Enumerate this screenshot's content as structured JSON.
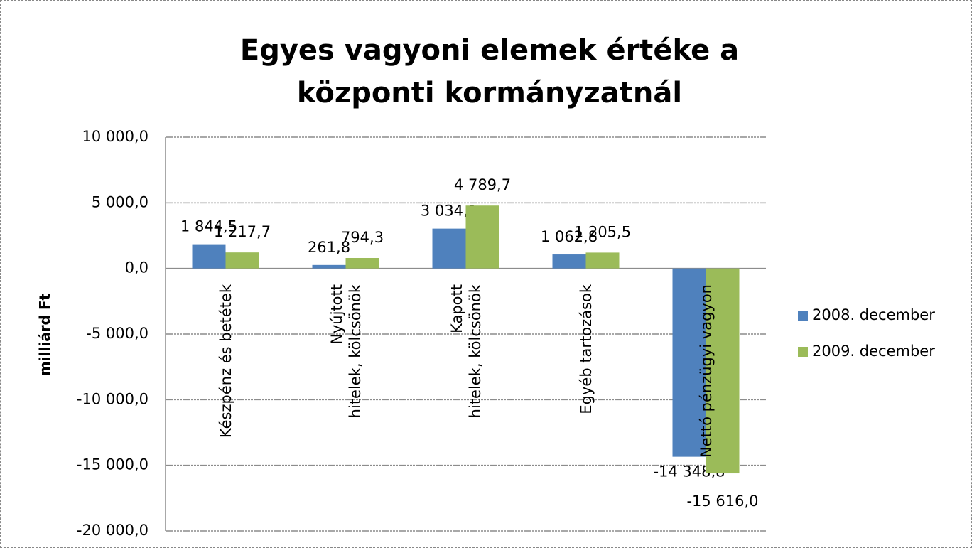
{
  "chart_data": {
    "type": "bar",
    "title": "Egyes vagyoni elemek értéke a központi kormányzatnál",
    "y_label": "milliárd Ft",
    "categories": [
      "Készpénz és betétek",
      "Nyújtott\nhitelek, kölcsönök",
      "Kapott\nhitelek, kölcsönök",
      "Egyéb tartozások",
      "Nettó pénzügyi vagyon"
    ],
    "series": [
      {
        "name": "2008. december",
        "color": "#4f81bd",
        "values": [
          1844.5,
          261.8,
          3034.1,
          1062.8,
          -14348.8
        ],
        "value_labels": [
          "1 844,5",
          "261,8",
          "3 034,1",
          "1 062,8",
          "-14 348,8"
        ]
      },
      {
        "name": "2009. december",
        "color": "#9bbb59",
        "values": [
          1217.7,
          794.3,
          4789.7,
          1205.5,
          -15616.0
        ],
        "value_labels": [
          "1 217,7",
          "794,3",
          "4 789,7",
          "1 205,5",
          "-15 616,0"
        ]
      }
    ],
    "ylim": [
      -20000,
      10000
    ],
    "yticks": [
      {
        "value": -20000,
        "label": "-20 000,0"
      },
      {
        "value": -15000,
        "label": "-15 000,0"
      },
      {
        "value": -10000,
        "label": "-10 000,0"
      },
      {
        "value": -5000,
        "label": "-5 000,0"
      },
      {
        "value": 0,
        "label": "0,0"
      },
      {
        "value": 5000,
        "label": "5 000,0"
      },
      {
        "value": 10000,
        "label": "10 000,0"
      }
    ],
    "grid": true,
    "legend": "right"
  }
}
